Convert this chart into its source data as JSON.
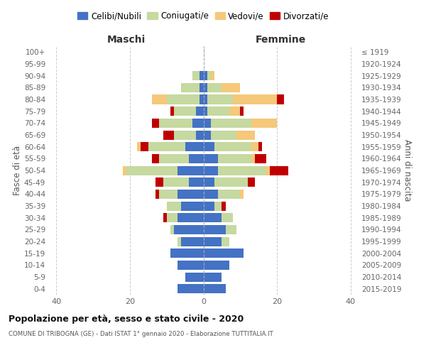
{
  "age_groups": [
    "0-4",
    "5-9",
    "10-14",
    "15-19",
    "20-24",
    "25-29",
    "30-34",
    "35-39",
    "40-44",
    "45-49",
    "50-54",
    "55-59",
    "60-64",
    "65-69",
    "70-74",
    "75-79",
    "80-84",
    "85-89",
    "90-94",
    "95-99",
    "100+"
  ],
  "birth_years": [
    "2015-2019",
    "2010-2014",
    "2005-2009",
    "2000-2004",
    "1995-1999",
    "1990-1994",
    "1985-1989",
    "1980-1984",
    "1975-1979",
    "1970-1974",
    "1965-1969",
    "1960-1964",
    "1955-1959",
    "1950-1954",
    "1945-1949",
    "1940-1944",
    "1935-1939",
    "1930-1934",
    "1925-1929",
    "1920-1924",
    "≤ 1919"
  ],
  "colors": {
    "celibi": "#4472c4",
    "coniugati": "#c5d9a0",
    "vedovi": "#f5c87a",
    "divorziati": "#c00000"
  },
  "males": {
    "celibi": [
      7,
      5,
      7,
      9,
      6,
      8,
      7,
      6,
      7,
      4,
      7,
      4,
      5,
      2,
      3,
      2,
      1,
      1,
      1,
      0,
      0
    ],
    "coniugati": [
      0,
      0,
      0,
      0,
      1,
      1,
      3,
      4,
      5,
      7,
      14,
      8,
      10,
      6,
      9,
      6,
      9,
      5,
      2,
      0,
      0
    ],
    "vedovi": [
      0,
      0,
      0,
      0,
      0,
      0,
      0,
      0,
      0,
      0,
      1,
      0,
      1,
      0,
      0,
      0,
      4,
      0,
      0,
      0,
      0
    ],
    "divorziati": [
      0,
      0,
      0,
      0,
      0,
      0,
      1,
      0,
      1,
      2,
      0,
      2,
      2,
      3,
      2,
      1,
      0,
      0,
      0,
      0,
      0
    ]
  },
  "females": {
    "celibi": [
      6,
      5,
      7,
      11,
      5,
      6,
      5,
      3,
      4,
      3,
      4,
      4,
      3,
      2,
      2,
      1,
      1,
      1,
      1,
      0,
      0
    ],
    "coniugati": [
      0,
      0,
      0,
      0,
      2,
      3,
      3,
      2,
      6,
      9,
      13,
      9,
      10,
      7,
      11,
      6,
      7,
      4,
      1,
      0,
      0
    ],
    "vedovi": [
      0,
      0,
      0,
      0,
      0,
      0,
      0,
      0,
      1,
      0,
      1,
      1,
      2,
      5,
      7,
      3,
      12,
      5,
      1,
      0,
      0
    ],
    "divorziati": [
      0,
      0,
      0,
      0,
      0,
      0,
      0,
      1,
      0,
      2,
      5,
      3,
      1,
      0,
      0,
      1,
      2,
      0,
      0,
      0,
      0
    ]
  },
  "title": "Popolazione per età, sesso e stato civile - 2020",
  "subtitle": "COMUNE DI TRIBOGNA (GE) - Dati ISTAT 1° gennaio 2020 - Elaborazione TUTTITALIA.IT",
  "xlabel_left": "Maschi",
  "xlabel_right": "Femmine",
  "ylabel_left": "Fasce di età",
  "ylabel_right": "Anni di nascita",
  "xlim": 42,
  "legend_labels": [
    "Celibi/Nubili",
    "Coniugati/e",
    "Vedovi/e",
    "Divorzati/e"
  ]
}
